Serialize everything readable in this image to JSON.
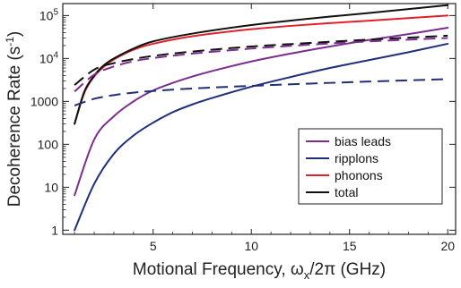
{
  "chart_data": {
    "type": "line",
    "xlabel": {
      "main": "Motional Frequency, ω",
      "sub": "x",
      "tail": "/2π (GHz)"
    },
    "ylabel": {
      "main": "Decoherence Rate (s",
      "sup": "-1",
      "tail": ")"
    },
    "xlim": [
      0.4,
      20.4
    ],
    "ylim": [
      0.8,
      190000
    ],
    "yscale": "log",
    "xticks": [
      5,
      10,
      15,
      20
    ],
    "xtick_labels": [
      "5",
      "10",
      "15",
      "20"
    ],
    "yticks": [
      1,
      10,
      100,
      1000,
      10000,
      100000
    ],
    "ytick_labels": [
      {
        "main": "1"
      },
      {
        "main": "10"
      },
      {
        "main": "100"
      },
      {
        "main": "1000"
      },
      {
        "main": "10",
        "sup": "4"
      },
      {
        "main": "10",
        "sup": "5"
      }
    ],
    "legend": {
      "position": "lower-right",
      "entries": [
        "bias leads",
        "ripplons",
        "phonons",
        "total"
      ]
    },
    "series": [
      {
        "name": "bias leads",
        "color": "#7b2e8e",
        "dash": "solid",
        "x": [
          1,
          2,
          3,
          4,
          5,
          6,
          7,
          8,
          10,
          12,
          14,
          16,
          18,
          20
        ],
        "y": [
          6.5,
          130,
          450,
          1000,
          1800,
          2700,
          3800,
          5100,
          8500,
          13000,
          19000,
          27000,
          37000,
          52000
        ]
      },
      {
        "name": "ripplons",
        "color": "#1f2f7a",
        "dash": "solid",
        "x": [
          1,
          2,
          3,
          4,
          5,
          6,
          7,
          8,
          10,
          12,
          14,
          16,
          18,
          20
        ],
        "y": [
          1,
          12,
          60,
          160,
          320,
          560,
          850,
          1200,
          2200,
          3700,
          6000,
          9200,
          14000,
          22000
        ]
      },
      {
        "name": "phonons",
        "color": "#e0212b",
        "dash": "solid",
        "x": [
          1,
          1.5,
          2,
          2.5,
          3,
          4,
          5,
          7,
          10,
          13,
          16,
          20
        ],
        "y": [
          300,
          1600,
          3800,
          6500,
          9500,
          16000,
          22000,
          33000,
          48000,
          62000,
          76000,
          100000
        ]
      },
      {
        "name": "total",
        "color": "#111111",
        "dash": "solid",
        "x": [
          1,
          1.5,
          2,
          2.5,
          3,
          4,
          5,
          7,
          10,
          13,
          16,
          20
        ],
        "y": [
          300,
          1700,
          4000,
          7000,
          10000,
          17000,
          25000,
          38000,
          60000,
          85000,
          115000,
          175000
        ]
      },
      {
        "color": "#7b2e8e",
        "dash": "dashed",
        "x": [
          1,
          2,
          3,
          4,
          5,
          7,
          10,
          13,
          16,
          20
        ],
        "y": [
          1700,
          4200,
          6500,
          8600,
          10200,
          13000,
          17000,
          21000,
          25000,
          30000
        ]
      },
      {
        "color": "#1f2f7a",
        "dash": "dashed",
        "x": [
          1,
          2,
          3,
          4,
          5,
          7,
          10,
          13,
          16,
          20
        ],
        "y": [
          800,
          1150,
          1400,
          1600,
          1750,
          2000,
          2300,
          2600,
          2900,
          3300
        ]
      },
      {
        "color": "#111111",
        "dash": "dashed",
        "x": [
          1,
          2,
          3,
          4,
          5,
          7,
          10,
          13,
          16,
          20
        ],
        "y": [
          2400,
          5500,
          7800,
          9700,
          11500,
          14500,
          19000,
          23000,
          27500,
          34000
        ]
      }
    ]
  }
}
